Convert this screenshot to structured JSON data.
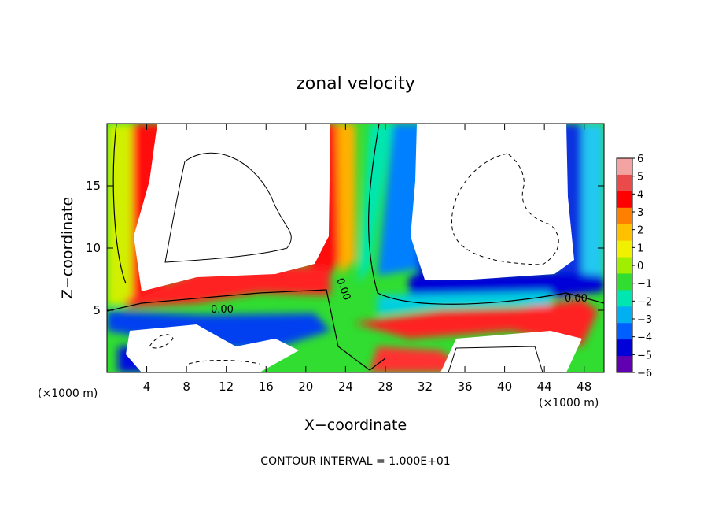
{
  "chart_data": {
    "type": "heatmap",
    "title": "zonal velocity",
    "xlabel": "X−coordinate",
    "ylabel": "Z−coordinate",
    "x_unit_note": "(×1000 m)",
    "z_unit_note": "(×1000 m)",
    "xlim": [
      0,
      50
    ],
    "ylim": [
      0,
      20
    ],
    "x_ticks": [
      4,
      8,
      12,
      16,
      20,
      24,
      28,
      32,
      36,
      40,
      44,
      48
    ],
    "x_tick_labels": [
      "4",
      "8",
      "12",
      "16",
      "20",
      "24",
      "28",
      "32",
      "36",
      "40",
      "44",
      "48"
    ],
    "y_ticks": [
      5,
      10,
      15
    ],
    "y_tick_labels": [
      "5",
      "10",
      "15"
    ],
    "colorbar": {
      "min": -6,
      "max": 6,
      "tick_labels": [
        "6",
        "5",
        "4",
        "3",
        "2",
        "1",
        "0",
        "−1",
        "−2",
        "−3",
        "−4",
        "−5",
        "−6"
      ],
      "colors": [
        "#f4a3a3",
        "#ea4a4a",
        "#ff0000",
        "#ff8000",
        "#ffc000",
        "#f0f000",
        "#a0ee00",
        "#30dd30",
        "#00e6b0",
        "#00b0f0",
        "#0060ff",
        "#0000d8",
        "#6000b0"
      ]
    },
    "contour_labels": [
      "0.00",
      "0.00",
      "0.00"
    ],
    "contour_interval_text": "CONTOUR INTERVAL = 1.000E+01"
  }
}
